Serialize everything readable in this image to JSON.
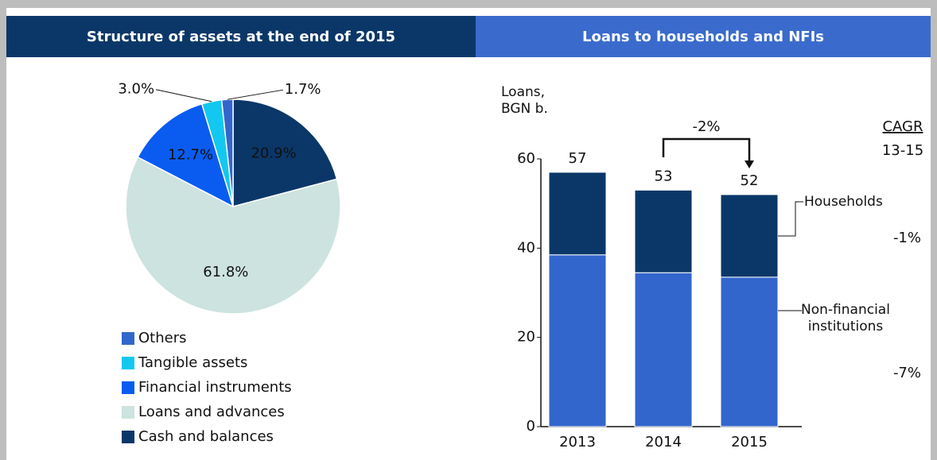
{
  "chart_data": [
    {
      "type": "pie",
      "title": "Structure of assets at the end of 2015",
      "categories": [
        "Others",
        "Tangible assets",
        "Financial instruments",
        "Loans and advances",
        "Cash and balances"
      ],
      "values": [
        1.7,
        3.0,
        12.7,
        61.8,
        20.9
      ],
      "value_labels": [
        "1.7%",
        "3.0%",
        "12.7%",
        "61.8%",
        "20.9%"
      ],
      "colors": [
        "#3366cc",
        "#13c8f0",
        "#0a5cf0",
        "#cde3df",
        "#0b3768"
      ]
    },
    {
      "type": "bar",
      "stacked": true,
      "title": "Loans to households and NFIs",
      "y_label": "Loans, BGN b.",
      "categories": [
        "2013",
        "2014",
        "2015"
      ],
      "series": [
        {
          "name": "Non-financial institutions",
          "color": "#3366cc",
          "values": [
            38.5,
            34.5,
            33.5
          ],
          "cagr": "-7%"
        },
        {
          "name": "Households",
          "color": "#0b3768",
          "values": [
            18.5,
            18.5,
            18.5
          ],
          "cagr": "-1%"
        }
      ],
      "totals": [
        57,
        53,
        52
      ],
      "ylim": [
        0,
        60
      ],
      "yticks": [
        0,
        20,
        40,
        60
      ],
      "change_label": "-2%",
      "cagr_title": "CAGR",
      "cagr_period": "13-15"
    }
  ]
}
